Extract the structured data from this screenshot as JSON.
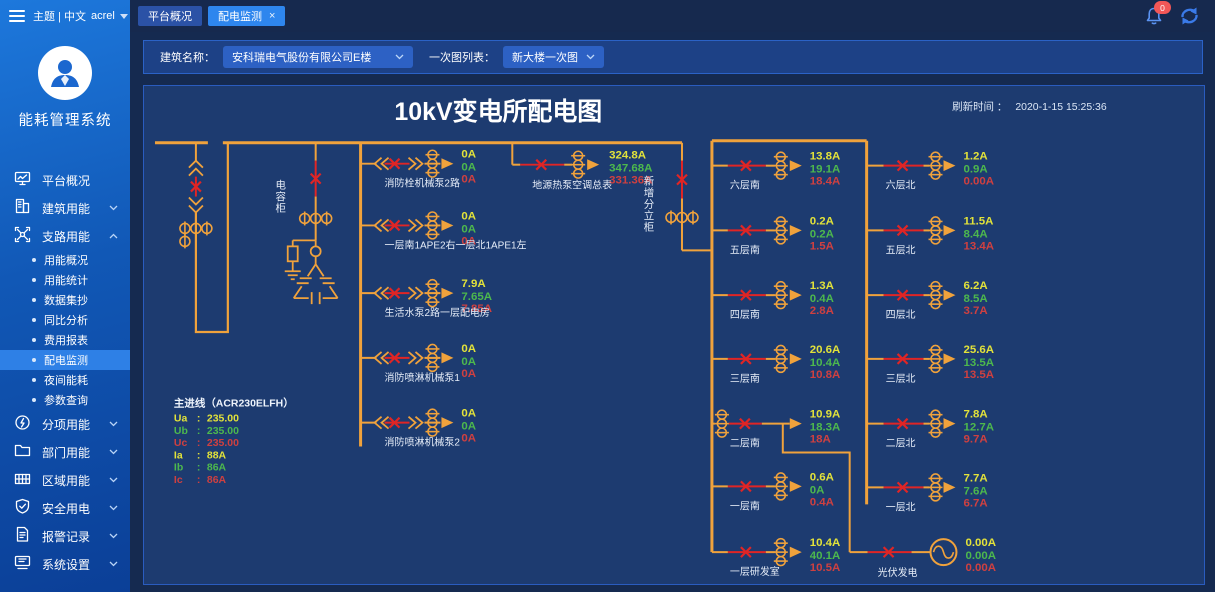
{
  "topbar": {
    "theme_label": "主题 | 中文",
    "user": "acrel",
    "tabs": [
      {
        "id": "platform-overview",
        "label": "平台概况",
        "active": false
      },
      {
        "id": "distribution-monitoring",
        "label": "配电监测",
        "active": true,
        "close": "×"
      }
    ],
    "notification_count": "0"
  },
  "sidebar": {
    "system_title": "能耗管理系统",
    "items": [
      {
        "id": "platform-overview",
        "label": "平台概况"
      },
      {
        "id": "building-energy",
        "label": "建筑用能",
        "chevron": "down"
      },
      {
        "id": "branch-energy",
        "label": "支路用能",
        "chevron": "up",
        "active": true,
        "children": [
          {
            "id": "energy-overview",
            "label": "用能概况"
          },
          {
            "id": "energy-statistics",
            "label": "用能统计"
          },
          {
            "id": "data-collection",
            "label": "数据集抄"
          },
          {
            "id": "yoy-analysis",
            "label": "同比分析"
          },
          {
            "id": "cost-report",
            "label": "费用报表"
          },
          {
            "id": "distribution-monitoring",
            "label": "配电监测",
            "selected": true
          },
          {
            "id": "night-energy",
            "label": "夜间能耗"
          },
          {
            "id": "parameter-query",
            "label": "参数查询"
          }
        ]
      },
      {
        "id": "itemized-energy",
        "label": "分项用能",
        "chevron": "down"
      },
      {
        "id": "department-energy",
        "label": "部门用能",
        "chevron": "down"
      },
      {
        "id": "region-energy",
        "label": "区域用能",
        "chevron": "down"
      },
      {
        "id": "safe-power",
        "label": "安全用电",
        "chevron": "down"
      },
      {
        "id": "alarm-records",
        "label": "报警记录",
        "chevron": "down"
      },
      {
        "id": "system-settings",
        "label": "系统设置",
        "chevron": "down"
      }
    ]
  },
  "filters": {
    "building_label": "建筑名称：",
    "building_value": "安科瑞电气股份有限公司E楼",
    "diagram_label": "一次图列表：",
    "diagram_value": "新大楼一次图"
  },
  "colors": {
    "line": "#f0a23c",
    "breaker": "#e02525",
    "phase_a": "#e2e23a",
    "phase_b": "#4db84d",
    "phase_c": "#cf4040"
  },
  "diagram": {
    "title": "10kV变电所配电图",
    "refresh_label": "刷新时间 ：",
    "refresh_time": "2020-1-15 15:25:36",
    "cabinet_label": "电容柜",
    "new_cabinet_label": "新增分立柜",
    "main_line": {
      "title": "主进线（ACR230ELFH）",
      "rows": [
        {
          "name": "Ua",
          "value": "235.00",
          "color": "y"
        },
        {
          "name": "Ub",
          "value": "235.00",
          "color": "g"
        },
        {
          "name": "Uc",
          "value": "235.00",
          "color": "r"
        },
        {
          "name": "Ia",
          "value": "88A",
          "color": "y"
        },
        {
          "name": "Ib",
          "value": "86A",
          "color": "g"
        },
        {
          "name": "Ic",
          "value": "86A",
          "color": "r"
        }
      ]
    },
    "branches": {
      "middle": [
        {
          "id": "fire-hydrant-pump-2",
          "label": "消防栓机械泵2路",
          "values": [
            "0A",
            "0A",
            "0A"
          ]
        },
        {
          "id": "floor1-ape",
          "label": "一层南1APE2右一层北1APE1左",
          "values": [
            "0A",
            "0A",
            "0A"
          ]
        },
        {
          "id": "domestic-water-pump",
          "label": "生活水泵2路一层配电房",
          "values": [
            "7.9A",
            "7.65A",
            "7.85A"
          ]
        },
        {
          "id": "sprinkler-pump-1",
          "label": "消防喷淋机械泵1",
          "values": [
            "0A",
            "0A",
            "0A"
          ]
        },
        {
          "id": "sprinkler-pump-2",
          "label": "消防喷淋机械泵2",
          "values": [
            "0A",
            "0A",
            "0A"
          ]
        }
      ],
      "heat_pump": {
        "id": "heat-pump-total",
        "label": "地源热泵空调总表",
        "values": [
          "324.8A",
          "347.68A",
          "331.36A"
        ]
      },
      "south": [
        {
          "id": "floor6-south",
          "label": "六层南",
          "values": [
            "13.8A",
            "19.1A",
            "18.4A"
          ]
        },
        {
          "id": "floor5-south",
          "label": "五层南",
          "values": [
            "0.2A",
            "0.2A",
            "1.5A"
          ]
        },
        {
          "id": "floor4-south",
          "label": "四层南",
          "values": [
            "1.3A",
            "0.4A",
            "2.8A"
          ]
        },
        {
          "id": "floor3-south",
          "label": "三层南",
          "values": [
            "20.6A",
            "10.4A",
            "10.8A"
          ]
        },
        {
          "id": "floor2-south",
          "label": "二层南",
          "values": [
            "10.9A",
            "18.3A",
            "18A"
          ]
        },
        {
          "id": "floor1-south",
          "label": "一层南",
          "values": [
            "0.6A",
            "0A",
            "0.4A"
          ]
        },
        {
          "id": "floor1-rnd",
          "label": "一层研发室",
          "values": [
            "10.4A",
            "40.1A",
            "10.5A"
          ]
        }
      ],
      "north": [
        {
          "id": "floor6-north",
          "label": "六层北",
          "values": [
            "1.2A",
            "0.9A",
            "0.00A"
          ]
        },
        {
          "id": "floor5-north",
          "label": "五层北",
          "values": [
            "11.5A",
            "8.4A",
            "13.4A"
          ]
        },
        {
          "id": "floor4-north",
          "label": "四层北",
          "values": [
            "6.2A",
            "8.5A",
            "3.7A"
          ]
        },
        {
          "id": "floor3-north",
          "label": "三层北",
          "values": [
            "25.6A",
            "13.5A",
            "13.5A"
          ]
        },
        {
          "id": "floor2-north",
          "label": "二层北",
          "values": [
            "7.8A",
            "12.7A",
            "9.7A"
          ]
        },
        {
          "id": "floor1-north",
          "label": "一层北",
          "values": [
            "7.7A",
            "7.6A",
            "6.7A"
          ]
        }
      ],
      "pv": {
        "id": "pv-generation",
        "label": "光伏发电",
        "values": [
          "0.00A",
          "0.00A",
          "0.00A"
        ]
      }
    }
  }
}
